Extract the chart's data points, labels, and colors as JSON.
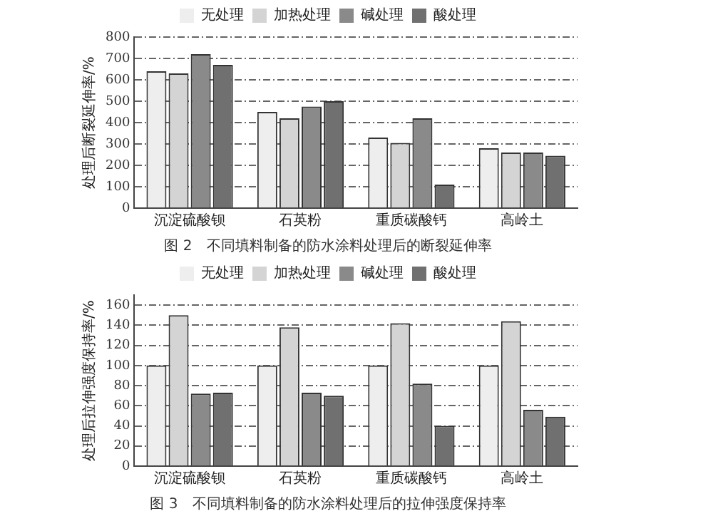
{
  "chart_data": [
    {
      "type": "bar",
      "title": "图 2　不同填料制备的防水涂料处理后的断裂延伸率",
      "ylabel": "处理后断裂延伸率/%",
      "categories": [
        "沉淀硫酸钡",
        "石英粉",
        "重质碳酸钙",
        "高岭土"
      ],
      "series": [
        {
          "name": "无处理",
          "color": "#eeeeee",
          "values": [
            640,
            450,
            330,
            280
          ]
        },
        {
          "name": "加热处理",
          "color": "#d4d4d4",
          "values": [
            630,
            420,
            305,
            260
          ]
        },
        {
          "name": "碱处理",
          "color": "#8a8a8a",
          "values": [
            720,
            475,
            420,
            260
          ]
        },
        {
          "name": "酸处理",
          "color": "#707070",
          "values": [
            670,
            500,
            110,
            245
          ]
        }
      ],
      "ylim": [
        0,
        800
      ],
      "yticks": [
        0,
        100,
        200,
        300,
        400,
        500,
        600,
        700,
        800
      ],
      "grid": "y",
      "legend": "top"
    },
    {
      "type": "bar",
      "title": "图 3　不同填料制备的防水涂料处理后的拉伸强度保持率",
      "ylabel": "处理后拉伸强度保持率/%",
      "categories": [
        "沉淀硫酸钡",
        "石英粉",
        "重质碳酸钙",
        "高岭土"
      ],
      "series": [
        {
          "name": "无处理",
          "color": "#eeeeee",
          "values": [
            100,
            100,
            100,
            100
          ]
        },
        {
          "name": "加热处理",
          "color": "#d4d4d4",
          "values": [
            150,
            138,
            142,
            144
          ]
        },
        {
          "name": "碱处理",
          "color": "#8a8a8a",
          "values": [
            72,
            73,
            82,
            56
          ]
        },
        {
          "name": "酸处理",
          "color": "#707070",
          "values": [
            73,
            70,
            40,
            49
          ]
        }
      ],
      "ylim": [
        0,
        170
      ],
      "yticks": [
        0,
        20,
        40,
        60,
        80,
        100,
        120,
        140,
        160
      ],
      "grid": "y",
      "legend": "top"
    }
  ]
}
